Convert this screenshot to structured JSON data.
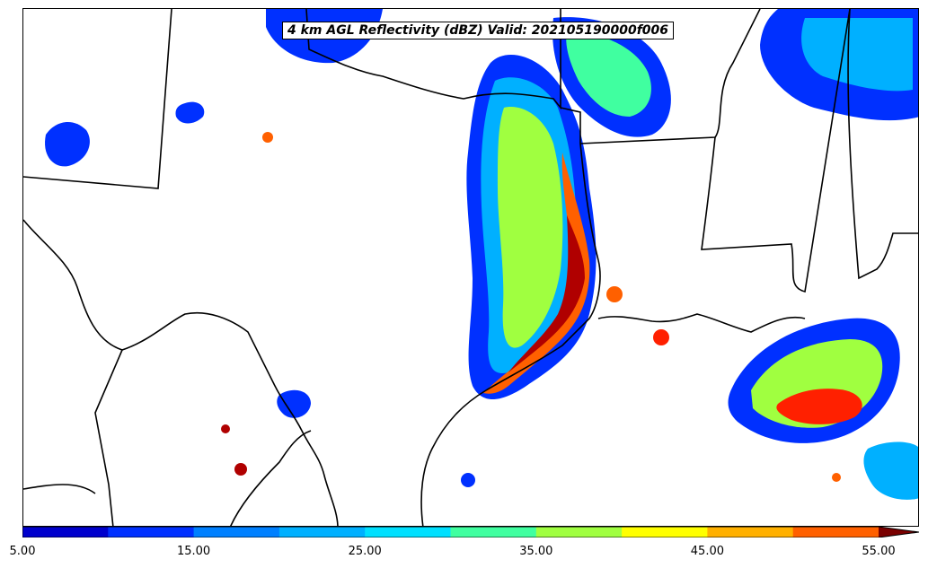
{
  "map": {
    "title": "4 km AGL Reflectivity (dBZ) Valid: 202105190000f006",
    "field": "reflectivity",
    "units": "dBZ"
  },
  "colorbar": {
    "min": 5,
    "max": 55,
    "step": 5,
    "extend": "max",
    "colors": [
      "#0000cd",
      "#0030ff",
      "#0080ff",
      "#00b0ff",
      "#00e0ff",
      "#40ffa0",
      "#a0ff40",
      "#ffff00",
      "#ffb000",
      "#ff6000",
      "#ff2000",
      "#b00000",
      "#7a0000"
    ],
    "labels": [
      "5.00",
      "15.00",
      "25.00",
      "35.00",
      "45.00",
      "55.00"
    ]
  }
}
